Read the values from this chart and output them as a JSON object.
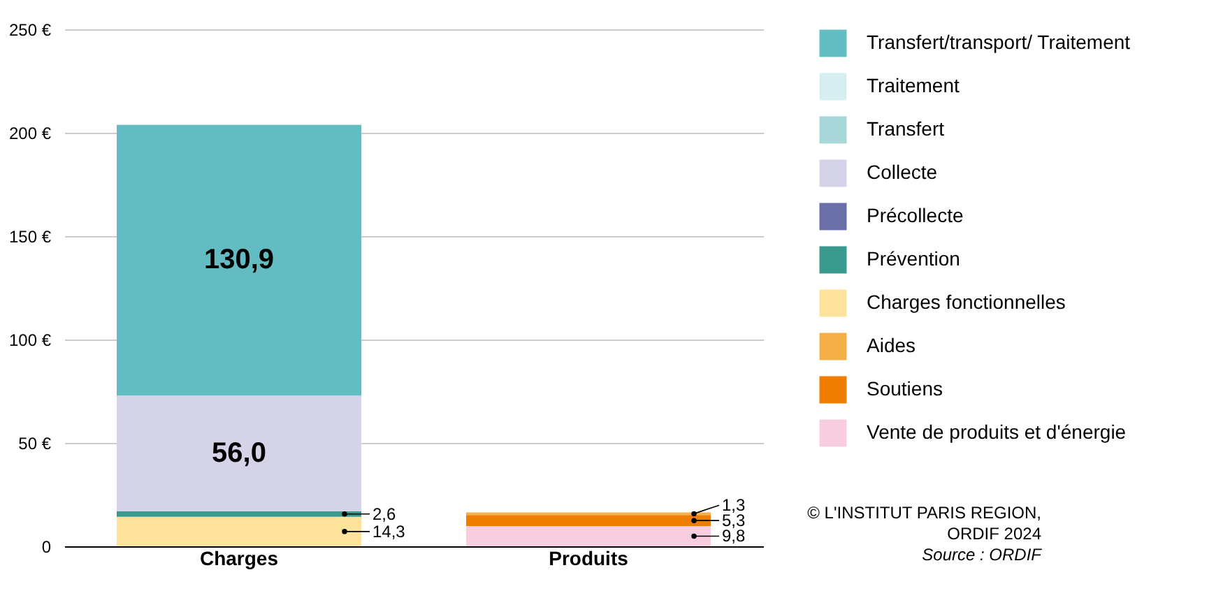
{
  "chart_data": {
    "type": "bar",
    "stacked": true,
    "categories": [
      "Charges",
      "Produits"
    ],
    "ylim": [
      0,
      250
    ],
    "yticks": [
      0,
      {
        "value": 50,
        "label": "50 €"
      },
      {
        "value": 100,
        "label": "100 €"
      },
      {
        "value": 150,
        "label": "150 €"
      },
      {
        "value": 200,
        "label": "200 €"
      },
      {
        "value": 250,
        "label": "250 €"
      }
    ],
    "grid": "y",
    "legend": "right",
    "series": [
      {
        "name": "Charges fonctionnelles",
        "color": "#fde39b",
        "values": [
          14.3,
          null
        ],
        "value_labels": [
          "14,3",
          null
        ]
      },
      {
        "name": "Prévention",
        "color": "#3a9a8e",
        "values": [
          2.6,
          null
        ],
        "value_labels": [
          "2,6",
          null
        ]
      },
      {
        "name": "Précollecte",
        "color": "#6b6fa8",
        "values": [
          null,
          null
        ]
      },
      {
        "name": "Collecte",
        "color": "#d5d3e8",
        "values": [
          56.0,
          null
        ],
        "value_labels": [
          "56,0",
          null
        ]
      },
      {
        "name": "Transfert",
        "color": "#a9d8da",
        "values": [
          null,
          null
        ]
      },
      {
        "name": "Traitement",
        "color": "#d6eef0",
        "values": [
          null,
          null
        ]
      },
      {
        "name": "Transfert/transport/ Traitement",
        "color": "#62bcc1",
        "values": [
          130.9,
          null
        ],
        "value_labels": [
          "130,9",
          null
        ]
      },
      {
        "name": "Vente de produits et d'énergie",
        "color": "#f9cde0",
        "values": [
          null,
          9.8
        ],
        "value_labels": [
          null,
          "9,8"
        ]
      },
      {
        "name": "Soutiens",
        "color": "#ef7d00",
        "values": [
          null,
          5.3
        ],
        "value_labels": [
          null,
          "5,3"
        ]
      },
      {
        "name": "Aides",
        "color": "#f5b04a",
        "values": [
          null,
          1.3
        ],
        "value_labels": [
          null,
          "1,3"
        ]
      }
    ],
    "annotations": [
      "© L'INSTITUT PARIS REGION, ORDIF 2024",
      "Source : ORDIF"
    ]
  }
}
